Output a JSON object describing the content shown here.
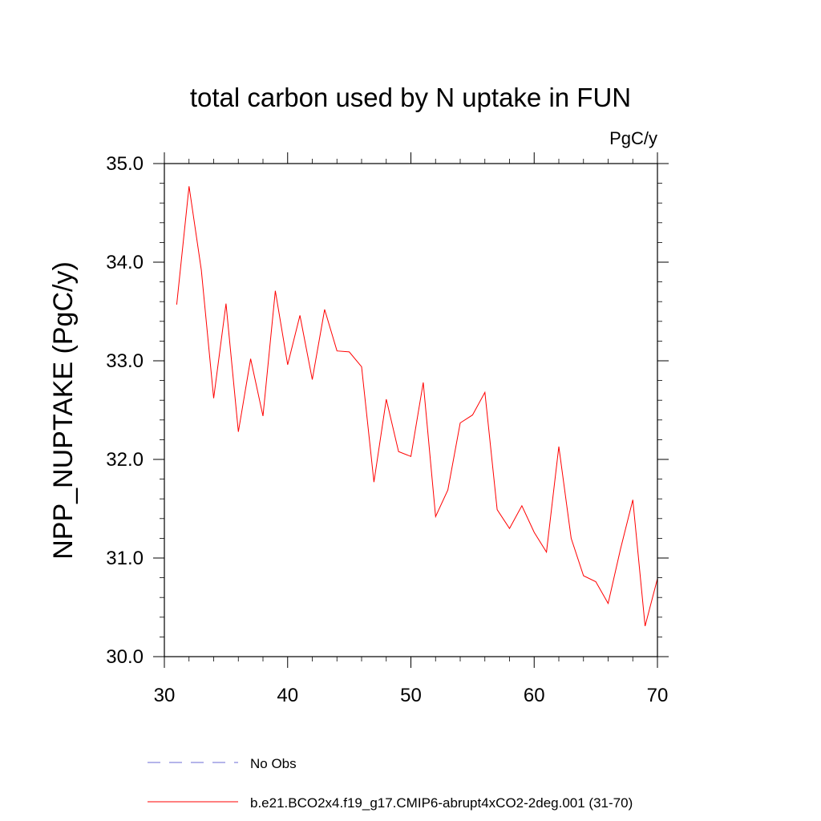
{
  "chart_data": {
    "type": "line",
    "title": "total carbon used by N uptake in FUN",
    "units_label": "PgC/y",
    "ylabel": "NPP_NUPTAKE  (PgC/y)",
    "xlabel": "",
    "xlim": [
      30,
      70
    ],
    "ylim": [
      30.0,
      35.0
    ],
    "x_ticks": [
      30,
      40,
      50,
      60,
      70
    ],
    "x_tick_labels": [
      "30",
      "40",
      "50",
      "60",
      "70"
    ],
    "y_ticks": [
      30.0,
      31.0,
      32.0,
      33.0,
      34.0,
      35.0
    ],
    "y_tick_labels": [
      "30.0",
      "31.0",
      "32.0",
      "33.0",
      "34.0",
      "35.0"
    ],
    "grid": false,
    "legend_position": "bottom",
    "series": [
      {
        "name": "b.e21.BCO2x4.f19_g17.CMIP6-abrupt4xCO2-2deg.001 (31-70)",
        "color": "#ff0000",
        "style": "solid",
        "x": [
          31,
          32,
          33,
          34,
          35,
          36,
          37,
          38,
          39,
          40,
          41,
          42,
          43,
          44,
          45,
          46,
          47,
          48,
          49,
          50,
          51,
          52,
          53,
          54,
          55,
          56,
          57,
          58,
          59,
          60,
          61,
          62,
          63,
          64,
          65,
          66,
          67,
          68,
          69,
          70
        ],
        "values": [
          33.57,
          34.77,
          33.92,
          32.62,
          33.58,
          32.28,
          33.02,
          32.44,
          33.71,
          32.96,
          33.46,
          32.81,
          33.52,
          33.1,
          33.09,
          32.94,
          31.77,
          32.61,
          32.08,
          32.03,
          32.78,
          31.42,
          31.69,
          32.37,
          32.45,
          32.68,
          31.49,
          31.3,
          31.53,
          31.26,
          31.06,
          32.13,
          31.2,
          30.82,
          30.76,
          30.54,
          31.09,
          31.59,
          30.31,
          30.79
        ]
      }
    ],
    "legend": [
      {
        "label": "No Obs",
        "color": "#6b6bd4",
        "style": "dashed"
      },
      {
        "label": "b.e21.BCO2x4.f19_g17.CMIP6-abrupt4xCO2-2deg.001 (31-70)",
        "color": "#ff0000",
        "style": "solid"
      }
    ]
  }
}
